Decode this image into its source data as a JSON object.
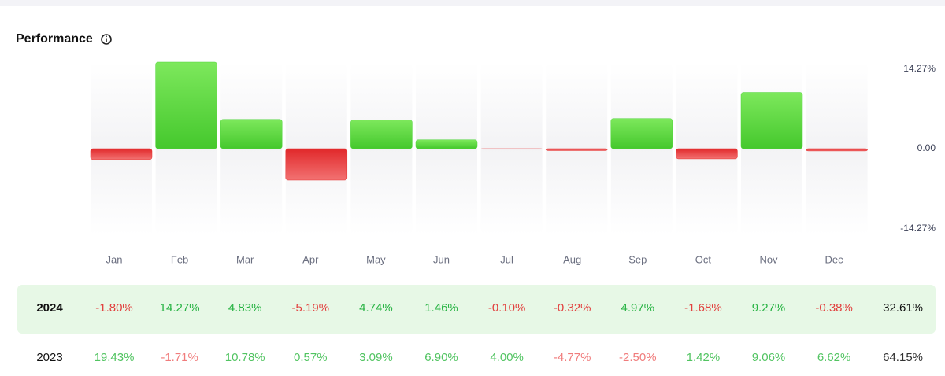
{
  "title": "Performance",
  "chart_data": {
    "type": "bar",
    "categories": [
      "Jan",
      "Feb",
      "Mar",
      "Apr",
      "May",
      "Jun",
      "Jul",
      "Aug",
      "Sep",
      "Oct",
      "Nov",
      "Dec"
    ],
    "values": [
      -1.8,
      14.27,
      4.83,
      -5.19,
      4.74,
      1.46,
      -0.1,
      -0.32,
      4.97,
      -1.68,
      9.27,
      -0.38
    ],
    "ylim": [
      -14.27,
      14.27
    ],
    "yticks": [
      {
        "value": 14.27,
        "label": "14.27%"
      },
      {
        "value": 0,
        "label": "0.00"
      },
      {
        "value": -14.27,
        "label": "-14.27%"
      }
    ],
    "positive_color": "#4fd43a",
    "negative_color": "#e5302f"
  },
  "table": {
    "rows": [
      [
        "2024",
        "-1.80%",
        "14.27%",
        "4.83%",
        "-5.19%",
        "4.74%",
        "1.46%",
        "-0.10%",
        "-0.32%",
        "4.97%",
        "-1.68%",
        "9.27%",
        "-0.38%",
        "32.61%"
      ],
      [
        "2023",
        "19.43%",
        "-1.71%",
        "10.78%",
        "0.57%",
        "3.09%",
        "6.90%",
        "4.00%",
        "-4.77%",
        "-2.50%",
        "1.42%",
        "9.06%",
        "6.62%",
        "64.15%"
      ]
    ]
  }
}
